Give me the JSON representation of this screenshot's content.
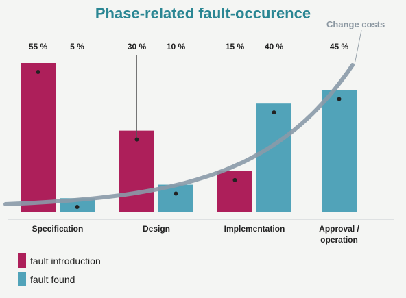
{
  "title": "Phase-related fault-occurence",
  "cost_curve_label": "Change costs",
  "colors": {
    "introduction": "#ad1f5a",
    "found": "#51a3b9",
    "curve": "#8a9aa8",
    "title": "#2a8693"
  },
  "legend": [
    {
      "label": "fault introduction",
      "color": "#ad1f5a"
    },
    {
      "label": "fault found",
      "color": "#51a3b9"
    }
  ],
  "chart_data": {
    "type": "bar",
    "title": "Phase-related fault-occurence",
    "categories": [
      "Specification",
      "Design",
      "Implementation",
      "Approval / operation"
    ],
    "category_lines": [
      [
        "Specification"
      ],
      [
        "Design"
      ],
      [
        "Implementation"
      ],
      [
        "Approval /",
        "operation"
      ]
    ],
    "series": [
      {
        "name": "fault introduction",
        "values": [
          55,
          30,
          15,
          null
        ],
        "labels": [
          "55 %",
          "30 %",
          "15 %",
          ""
        ]
      },
      {
        "name": "fault found",
        "values": [
          5,
          10,
          40,
          45
        ],
        "labels": [
          "5 %",
          "10 %",
          "40 %",
          "45 %"
        ]
      }
    ],
    "ylim": [
      0,
      60
    ],
    "value_unit": "%",
    "overlay_curve": {
      "name": "Change costs",
      "shape": "exponential, rising across phases"
    },
    "grid": false,
    "legend_position": "bottom-left"
  }
}
